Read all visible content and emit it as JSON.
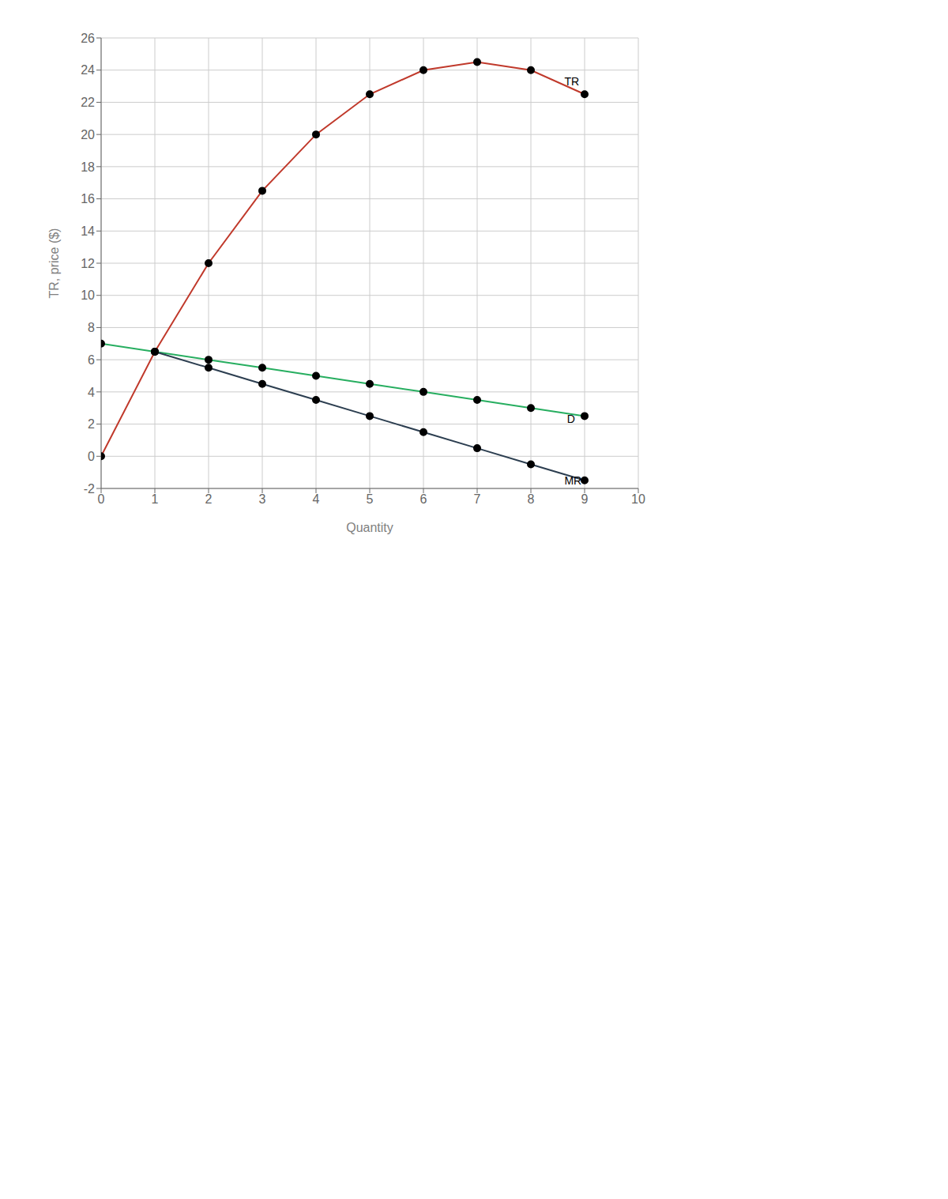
{
  "chart_data": {
    "type": "line",
    "x_label": "Quantity",
    "y_label": "TR, price ($)",
    "xlim": [
      0,
      10
    ],
    "xticks": [
      0,
      1,
      2,
      3,
      4,
      5,
      6,
      7,
      8,
      9,
      10
    ],
    "ylim": [
      -2,
      26
    ],
    "yticks": [
      -2,
      0,
      2,
      4,
      6,
      8,
      10,
      12,
      14,
      16,
      18,
      20,
      22,
      24,
      26
    ],
    "grid": true,
    "marker": "circle",
    "series": [
      {
        "name": "TR",
        "color": "#c0392b",
        "x": [
          0,
          1,
          2,
          3,
          4,
          5,
          6,
          7,
          8,
          9
        ],
        "values": [
          0.0,
          6.5,
          12.0,
          16.5,
          20.0,
          22.5,
          24.0,
          24.5,
          24.0,
          22.5
        ]
      },
      {
        "name": "D",
        "color": "#27ae60",
        "x": [
          0,
          1,
          2,
          3,
          4,
          5,
          6,
          7,
          8,
          9
        ],
        "values": [
          7.0,
          6.5,
          6.0,
          5.5,
          5.0,
          4.5,
          4.0,
          3.5,
          3.0,
          2.5
        ]
      },
      {
        "name": "MR",
        "color": "#2c3e50",
        "x": [
          1,
          2,
          3,
          4,
          5,
          6,
          7,
          8,
          9
        ],
        "values": [
          6.5,
          5.5,
          4.5,
          3.5,
          2.5,
          1.5,
          0.5,
          -0.5,
          -1.5
        ]
      }
    ],
    "annotations": [
      {
        "text": "TR",
        "x": 8.55,
        "y": 23.3
      },
      {
        "text": "D",
        "x": 8.6,
        "y": 2.3
      },
      {
        "text": "MR",
        "x": 8.55,
        "y": -1.5
      }
    ]
  }
}
